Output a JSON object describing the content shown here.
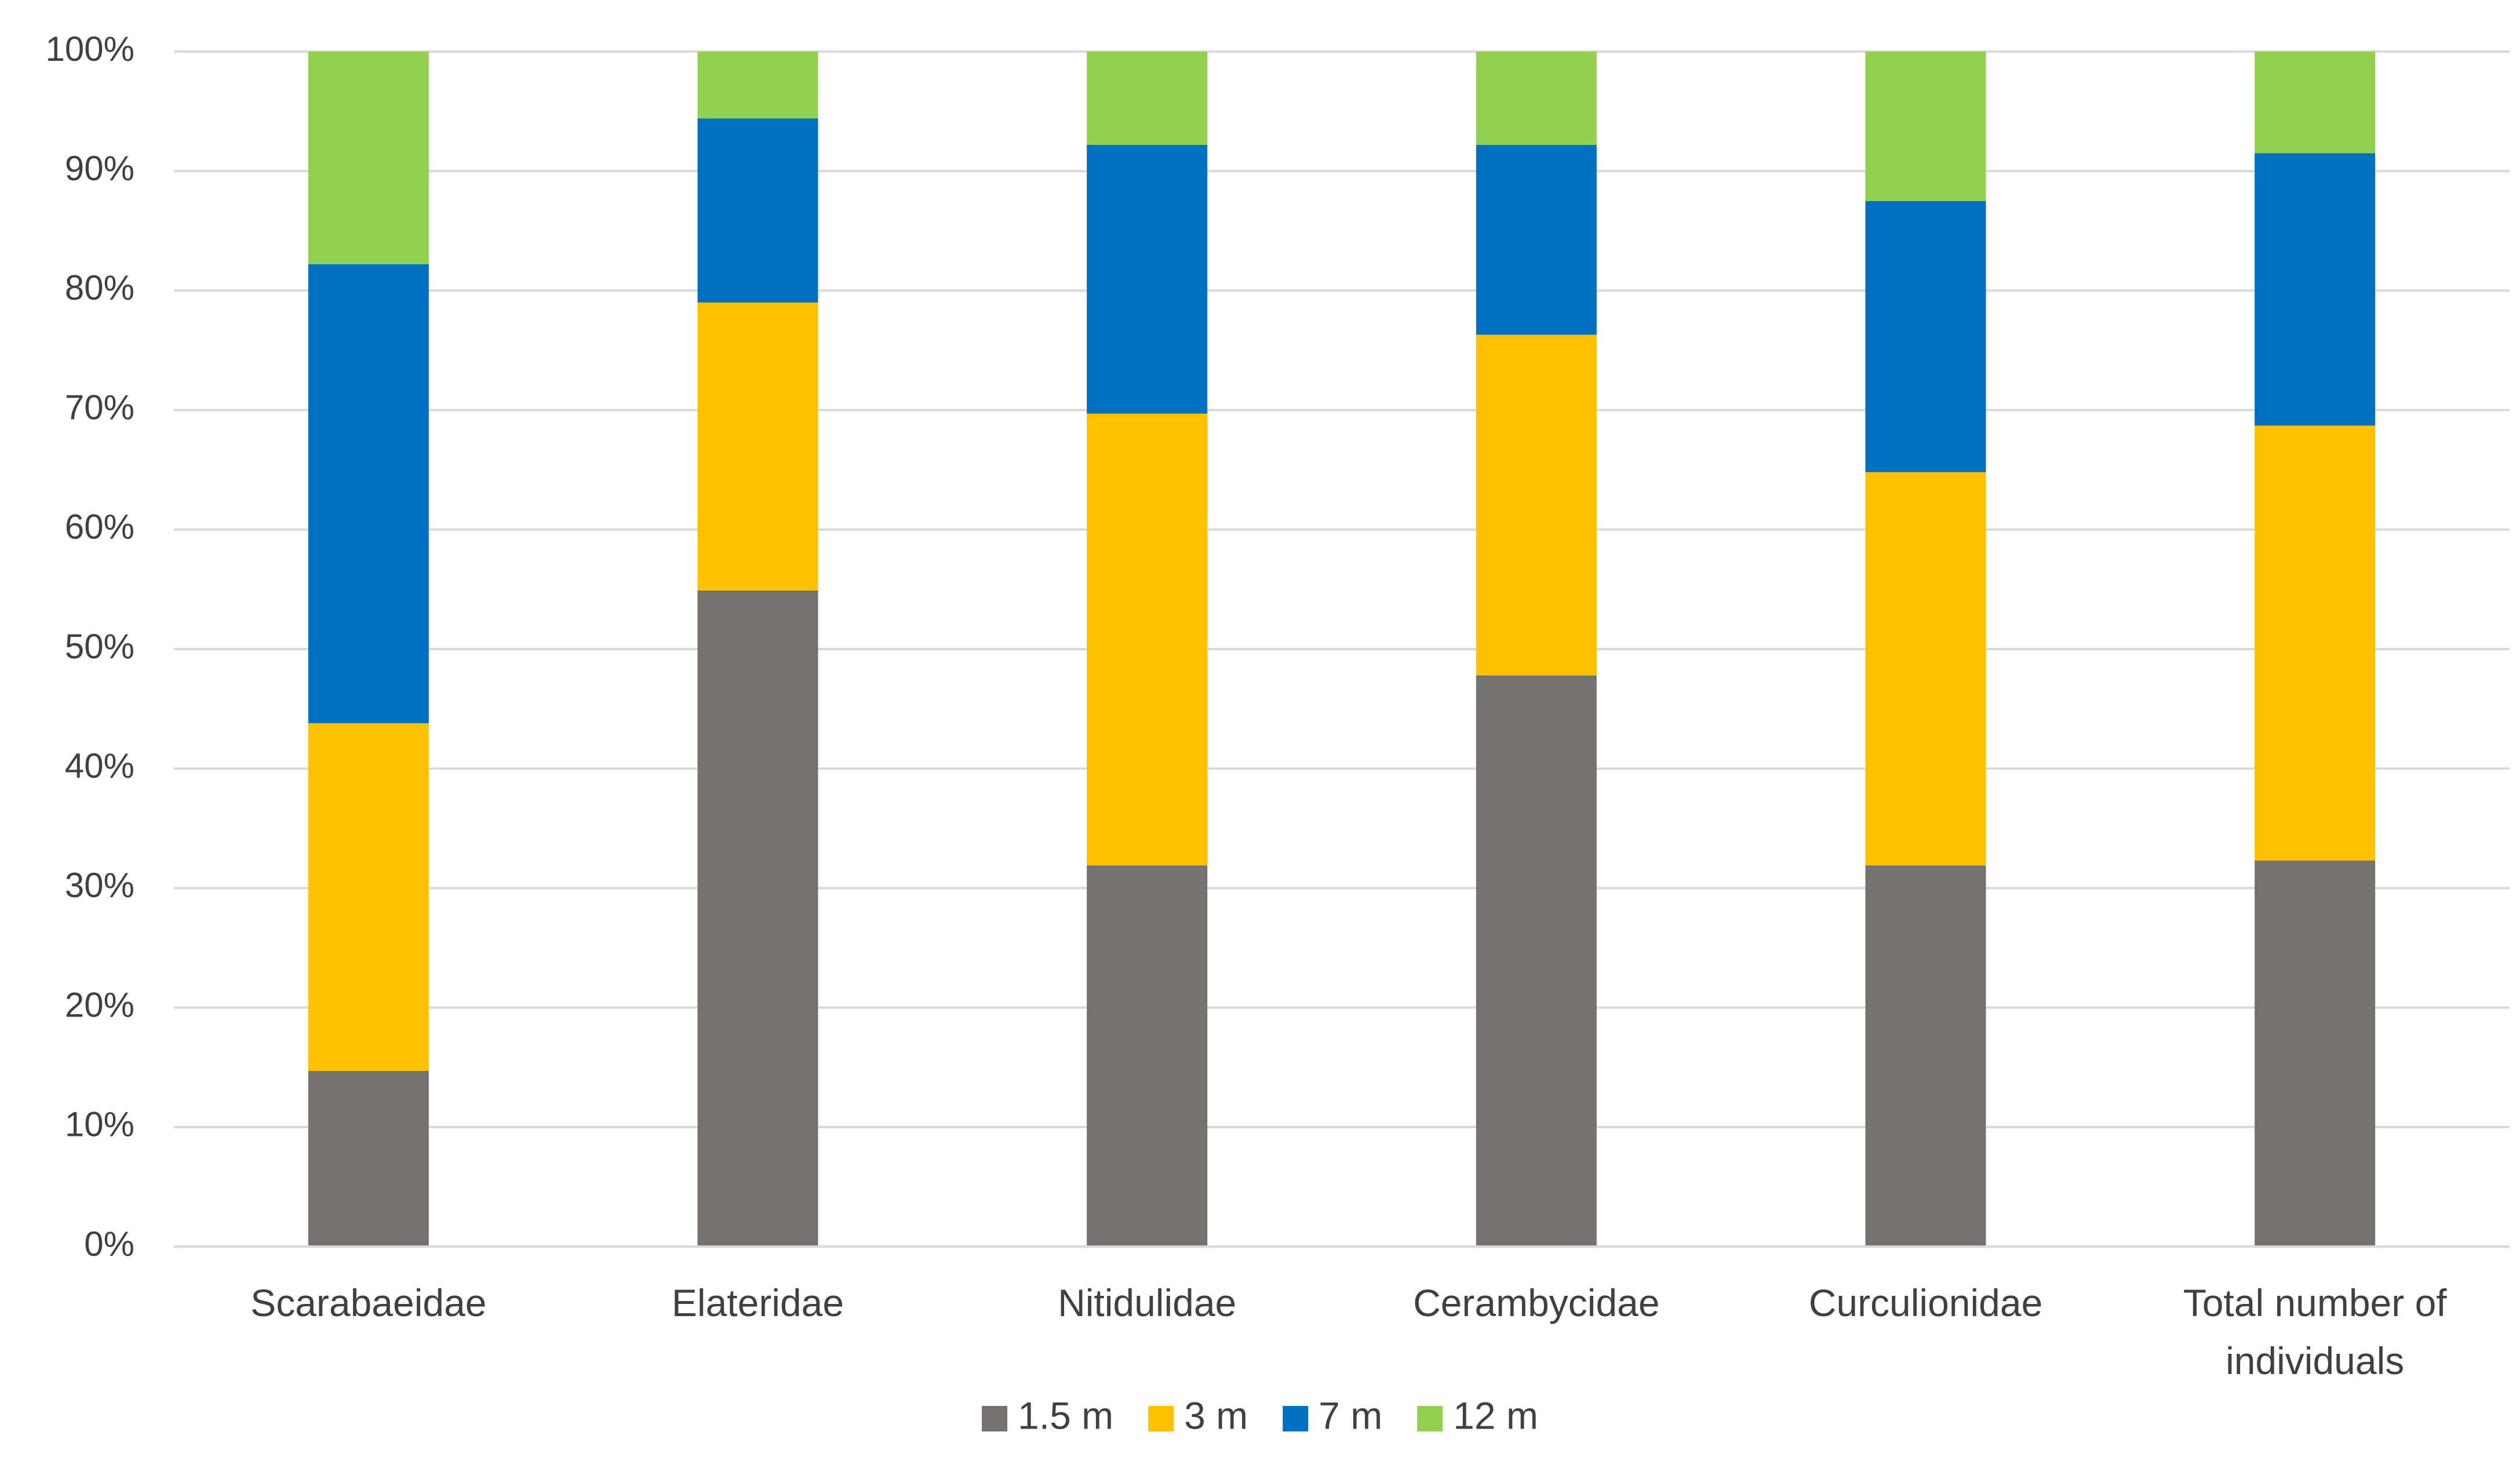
{
  "chart_data": {
    "type": "bar",
    "stacked": true,
    "percent_scale": true,
    "title": "",
    "xlabel": "",
    "ylabel": "",
    "ylim": [
      0,
      100
    ],
    "yticks": [
      "0%",
      "10%",
      "20%",
      "30%",
      "40%",
      "50%",
      "60%",
      "70%",
      "80%",
      "90%",
      "100%"
    ],
    "categories": [
      [
        "Scarabaeidae"
      ],
      [
        "Elateridae"
      ],
      [
        "Nitidulidae"
      ],
      [
        "Cerambycidae"
      ],
      [
        "Curculionidae"
      ],
      [
        "Total number of",
        "individuals"
      ]
    ],
    "series": [
      {
        "name": "1.5 m",
        "color": "#767171",
        "values": [
          14.7,
          54.9,
          31.9,
          47.8,
          31.9,
          32.3
        ]
      },
      {
        "name": "3 m",
        "color": "#ffc000",
        "values": [
          29.1,
          24.1,
          37.8,
          28.5,
          32.9,
          36.4
        ]
      },
      {
        "name": "7 m",
        "color": "#0070c0",
        "values": [
          38.4,
          15.4,
          22.5,
          15.9,
          22.7,
          22.8
        ]
      },
      {
        "name": "12 m",
        "color": "#92d050",
        "values": [
          17.8,
          5.6,
          7.8,
          7.8,
          12.5,
          8.5
        ]
      }
    ],
    "grid": true,
    "legend": "bottom-center"
  }
}
